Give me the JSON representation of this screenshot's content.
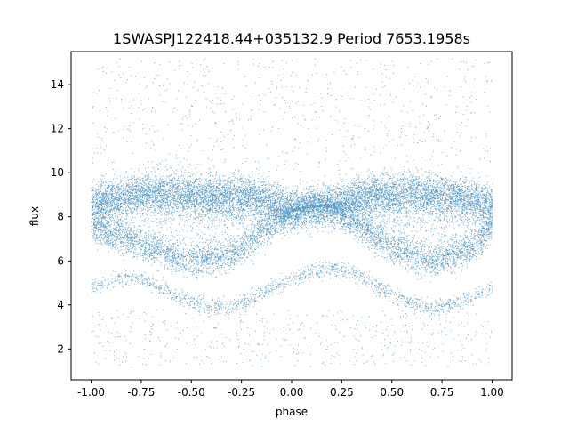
{
  "chart_data": {
    "type": "scatter",
    "title": "1SWASPJ122418.44+035132.9 Period 7653.1958s",
    "xlabel": "phase",
    "ylabel": "flux",
    "xlim": [
      -1.1,
      1.1
    ],
    "ylim": [
      0.6,
      15.5
    ],
    "x_ticks": [
      "-1.00",
      "-0.75",
      "-0.50",
      "-0.25",
      "0.00",
      "0.25",
      "0.50",
      "0.75",
      "1.00"
    ],
    "y_ticks": [
      "2",
      "4",
      "6",
      "8",
      "10",
      "12",
      "14"
    ],
    "point_color": "#1f77b4",
    "grid": false,
    "series": [
      {
        "phase": [
          -1.0,
          -0.9,
          -0.8,
          -0.7,
          -0.6,
          -0.5,
          -0.4,
          -0.3,
          -0.2,
          -0.1,
          0.0,
          0.1,
          0.2,
          0.3,
          0.4,
          0.5,
          0.6,
          0.7,
          0.8,
          0.9,
          1.0
        ],
        "upper_band_flux": [
          8.6,
          8.8,
          9.0,
          9.1,
          9.1,
          9.0,
          8.9,
          8.9,
          9.0,
          8.7,
          8.4,
          8.4,
          8.6,
          8.8,
          9.0,
          9.1,
          9.1,
          9.0,
          8.9,
          8.8,
          8.6
        ],
        "lower_branch_flux": [
          7.6,
          7.2,
          6.9,
          6.6,
          6.2,
          6.0,
          6.1,
          6.3,
          6.9,
          7.6,
          8.2,
          8.6,
          8.4,
          7.8,
          7.2,
          6.6,
          6.2,
          6.0,
          6.2,
          6.6,
          7.6
        ],
        "faint_sequence_flux": [
          4.8,
          5.1,
          5.3,
          5.0,
          4.5,
          4.1,
          3.9,
          4.0,
          4.3,
          4.8,
          5.2,
          5.5,
          5.7,
          5.5,
          5.0,
          4.5,
          4.1,
          3.9,
          4.0,
          4.4,
          4.8
        ]
      }
    ]
  }
}
